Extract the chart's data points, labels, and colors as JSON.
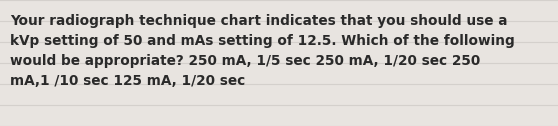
{
  "text": "Your radiograph technique chart indicates that you should use a\nkVp setting of 50 and mAs setting of 12.5. Which of the following\nwould be appropriate? 250 mA, 1/5 sec 250 mA, 1/20 sec 250\nmA,1 /10 sec 125 mA, 1/20 sec",
  "background_color": "#e8e4e0",
  "line_color": "#d4d0cc",
  "text_color": "#2a2a2a",
  "font_size": 9.8,
  "fig_width": 5.58,
  "fig_height": 1.26,
  "dpi": 100
}
